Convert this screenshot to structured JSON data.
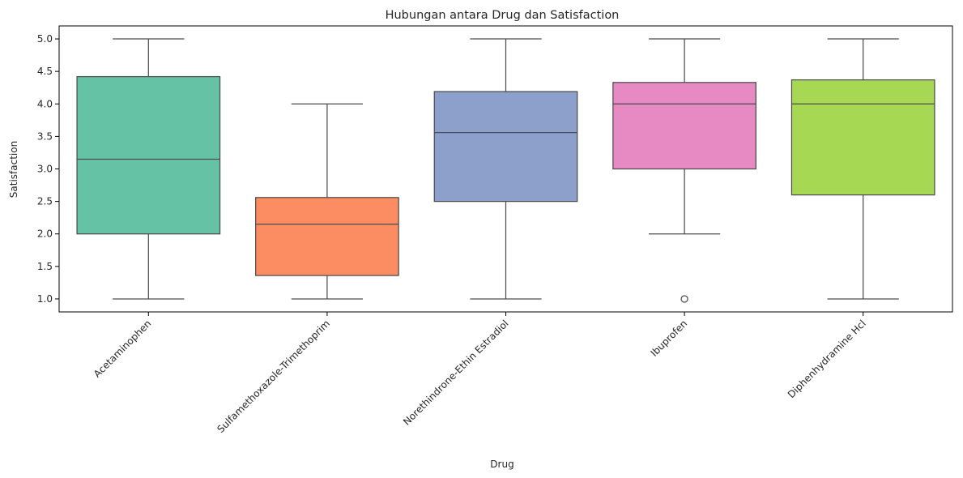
{
  "chart_data": {
    "type": "box",
    "title": "Hubungan antara Drug dan Satisfaction",
    "xlabel": "Drug",
    "ylabel": "Satisfaction",
    "ylim": [
      0.8,
      5.2
    ],
    "yticks": [
      "1.0",
      "1.5",
      "2.0",
      "2.5",
      "3.0",
      "3.5",
      "4.0",
      "4.5",
      "5.0"
    ],
    "grid": false,
    "legend": "none",
    "categories": [
      "Acetaminophen",
      "Sulfamethoxazole-Trimethoprim",
      "Norethindrone-Ethin Estradiol",
      "Ibuprofen",
      "Diphenhydramine Hcl"
    ],
    "boxes": [
      {
        "whisker_low": 1.0,
        "q1": 2.0,
        "median": 3.15,
        "q3": 4.42,
        "whisker_high": 5.0,
        "outliers": [],
        "color": "#66c2a5"
      },
      {
        "whisker_low": 1.0,
        "q1": 1.36,
        "median": 2.15,
        "q3": 2.56,
        "whisker_high": 4.0,
        "outliers": [],
        "color": "#fc8d62"
      },
      {
        "whisker_low": 1.0,
        "q1": 2.5,
        "median": 3.56,
        "q3": 4.19,
        "whisker_high": 5.0,
        "outliers": [],
        "color": "#8da0cb"
      },
      {
        "whisker_low": 2.0,
        "q1": 3.0,
        "median": 4.0,
        "q3": 4.33,
        "whisker_high": 5.0,
        "outliers": [
          1.0
        ],
        "color": "#e78ac3"
      },
      {
        "whisker_low": 1.0,
        "q1": 2.6,
        "median": 4.0,
        "q3": 4.37,
        "whisker_high": 5.0,
        "outliers": [],
        "color": "#a6d854"
      }
    ]
  }
}
